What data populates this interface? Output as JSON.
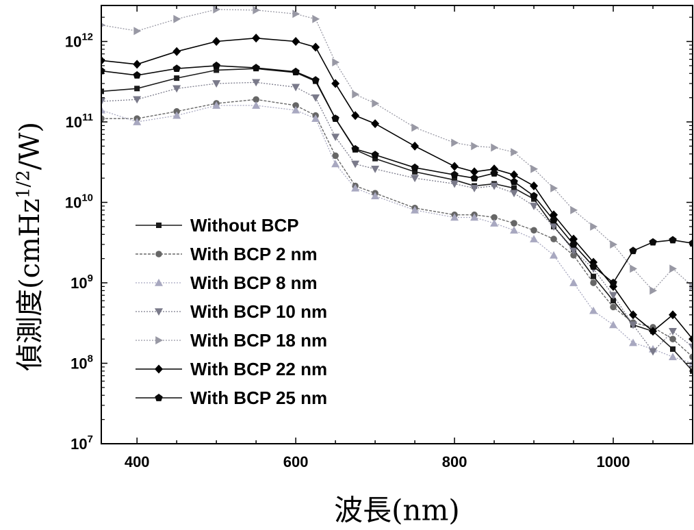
{
  "chart_data": {
    "type": "line",
    "title": "",
    "xlabel": "波長(nm)",
    "ylabel_main": "偵測度(cmHz",
    "ylabel_sup": "1/2",
    "ylabel_tail": "/W)",
    "xlim": [
      355,
      1100
    ],
    "ylim": [
      10000000,
      2800000000000
    ],
    "y_scale": "log",
    "x_ticks": [
      400,
      600,
      800,
      1000
    ],
    "y_ticks": [
      {
        "value": 10000000,
        "base": "10",
        "exp": "7"
      },
      {
        "value": 100000000,
        "base": "10",
        "exp": "8"
      },
      {
        "value": 1000000000,
        "base": "10",
        "exp": "9"
      },
      {
        "value": 10000000000,
        "base": "10",
        "exp": "10"
      },
      {
        "value": 100000000000,
        "base": "10",
        "exp": "11"
      },
      {
        "value": 1000000000000,
        "base": "10",
        "exp": "12"
      }
    ],
    "grid": false,
    "legend_position": "bottom-left",
    "series": [
      {
        "name": "Without BCP",
        "marker": "square",
        "color": "#1a1a1a",
        "dash": "",
        "width": 1.6,
        "x": [
          355,
          400,
          450,
          500,
          550,
          600,
          625,
          650,
          675,
          700,
          750,
          800,
          825,
          850,
          875,
          900,
          925,
          950,
          975,
          1000,
          1025,
          1050,
          1075,
          1100
        ],
        "y": [
          240000000000.0,
          260000000000.0,
          350000000000.0,
          440000000000.0,
          460000000000.0,
          410000000000.0,
          320000000000.0,
          110000000000.0,
          45000000000.0,
          35000000000.0,
          24000000000.0,
          19000000000.0,
          16000000000.0,
          17000000000.0,
          15000000000.0,
          11000000000.0,
          5000000000.0,
          2600000000.0,
          1200000000.0,
          600000000.0,
          300000000.0,
          250000000.0,
          150000000.0,
          80000000.0
        ]
      },
      {
        "name": "With BCP 2 nm",
        "marker": "circle",
        "color": "#666666",
        "dash": "4,2",
        "width": 1.4,
        "x": [
          355,
          400,
          450,
          500,
          550,
          600,
          625,
          650,
          675,
          700,
          750,
          800,
          825,
          850,
          875,
          900,
          925,
          950,
          975,
          1000,
          1025,
          1050,
          1075,
          1100
        ],
        "y": [
          110000000000.0,
          110000000000.0,
          135000000000.0,
          170000000000.0,
          190000000000.0,
          160000000000.0,
          120000000000.0,
          38000000000.0,
          16000000000.0,
          13000000000.0,
          8500000000.0,
          7000000000.0,
          7000000000.0,
          6500000000.0,
          5500000000.0,
          4500000000.0,
          3500000000.0,
          2200000000.0,
          1000000000.0,
          500000000.0,
          320000000.0,
          280000000.0,
          200000000.0,
          120000000.0
        ]
      },
      {
        "name": "With BCP 8 nm",
        "marker": "triangle-up",
        "color": "#a8a8c0",
        "dash": "2,2",
        "width": 1.3,
        "x": [
          355,
          400,
          450,
          500,
          550,
          600,
          625,
          650,
          675,
          700,
          750,
          800,
          825,
          850,
          875,
          900,
          925,
          950,
          975,
          1000,
          1025,
          1050,
          1075,
          1100
        ],
        "y": [
          140000000000.0,
          100000000000.0,
          120000000000.0,
          160000000000.0,
          160000000000.0,
          140000000000.0,
          110000000000.0,
          30000000000.0,
          15000000000.0,
          12000000000.0,
          8000000000.0,
          6500000000.0,
          6500000000.0,
          5500000000.0,
          4500000000.0,
          3500000000.0,
          2200000000.0,
          1000000000.0,
          450000000.0,
          300000000.0,
          180000000.0,
          150000000.0,
          120000000.0,
          100000000.0
        ]
      },
      {
        "name": "With BCP 10 nm",
        "marker": "triangle-down",
        "color": "#7a7a8a",
        "dash": "2,2",
        "width": 1.3,
        "x": [
          355,
          400,
          450,
          500,
          550,
          600,
          625,
          650,
          675,
          700,
          750,
          800,
          825,
          850,
          875,
          900,
          925,
          950,
          975,
          1000,
          1025,
          1050,
          1075,
          1100
        ],
        "y": [
          180000000000.0,
          190000000000.0,
          260000000000.0,
          300000000000.0,
          310000000000.0,
          270000000000.0,
          200000000000.0,
          65000000000.0,
          30000000000.0,
          26000000000.0,
          20000000000.0,
          17000000000.0,
          15000000000.0,
          16000000000.0,
          13000000000.0,
          9000000000.0,
          5000000000.0,
          2500000000.0,
          1500000000.0,
          700000000.0,
          300000000.0,
          140000000.0,
          250000000.0,
          160000000.0
        ]
      },
      {
        "name": "With BCP 18 nm",
        "marker": "triangle-right",
        "color": "#9898a4",
        "dash": "2,2",
        "width": 1.3,
        "x": [
          355,
          400,
          450,
          500,
          550,
          600,
          625,
          650,
          675,
          700,
          750,
          800,
          825,
          850,
          875,
          900,
          925,
          950,
          975,
          1000,
          1025,
          1050,
          1075,
          1100
        ],
        "y": [
          1600000000000.0,
          1350000000000.0,
          1900000000000.0,
          2500000000000.0,
          2450000000000.0,
          2200000000000.0,
          1900000000000.0,
          550000000000.0,
          220000000000.0,
          170000000000.0,
          85000000000.0,
          55000000000.0,
          50000000000.0,
          48000000000.0,
          42000000000.0,
          26000000000.0,
          15000000000.0,
          8000000000.0,
          5000000000.0,
          3000000000.0,
          1500000000.0,
          800000000.0,
          1500000000.0,
          900000000.0
        ]
      },
      {
        "name": "With BCP 22 nm",
        "marker": "diamond",
        "color": "#000000",
        "dash": "",
        "width": 1.6,
        "x": [
          355,
          400,
          450,
          500,
          550,
          600,
          625,
          650,
          675,
          700,
          750,
          800,
          825,
          850,
          875,
          900,
          925,
          950,
          975,
          1000,
          1025,
          1050,
          1075,
          1100
        ],
        "y": [
          580000000000.0,
          520000000000.0,
          750000000000.0,
          1000000000000.0,
          1100000000000.0,
          1000000000000.0,
          850000000000.0,
          300000000000.0,
          120000000000.0,
          95000000000.0,
          50000000000.0,
          28000000000.0,
          24000000000.0,
          26000000000.0,
          22000000000.0,
          16000000000.0,
          7000000000.0,
          3500000000.0,
          1800000000.0,
          900000000.0,
          400000000.0,
          250000000.0,
          400000000.0,
          200000000.0
        ]
      },
      {
        "name": "With BCP 25 nm",
        "marker": "pentagon",
        "color": "#0a0a0a",
        "dash": "",
        "width": 1.6,
        "x": [
          355,
          400,
          450,
          500,
          550,
          600,
          625,
          650,
          675,
          700,
          750,
          800,
          825,
          850,
          875,
          900,
          925,
          950,
          975,
          1000,
          1025,
          1050,
          1075,
          1100
        ],
        "y": [
          430000000000.0,
          380000000000.0,
          460000000000.0,
          500000000000.0,
          470000000000.0,
          420000000000.0,
          330000000000.0,
          110000000000.0,
          46000000000.0,
          39000000000.0,
          27000000000.0,
          22000000000.0,
          20000000000.0,
          23000000000.0,
          18000000000.0,
          12000000000.0,
          6000000000.0,
          3000000000.0,
          1600000000.0,
          1000000000.0,
          2500000000.0,
          3200000000.0,
          3400000000.0,
          3100000000.0
        ]
      }
    ]
  }
}
